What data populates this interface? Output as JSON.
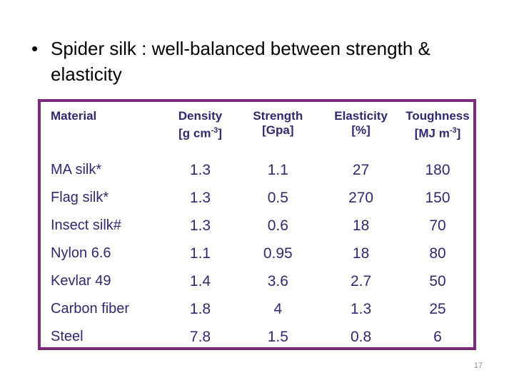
{
  "slide": {
    "bullet_glyph": "•",
    "bullet_text": "Spider silk : well-balanced between strength & elasticity",
    "page_number": "17"
  },
  "table": {
    "headers": [
      {
        "line1": "Material",
        "line2": "",
        "unit": "",
        "line2_suffix": ""
      },
      {
        "line1": "Density",
        "line2": "[g cm",
        "unit": "-3",
        "line2_suffix": "]"
      },
      {
        "line1": "Strength",
        "line2": "[Gpa]",
        "unit": "",
        "line2_suffix": ""
      },
      {
        "line1": "Elasticity",
        "line2": "[%]",
        "unit": "",
        "line2_suffix": ""
      },
      {
        "line1": "Toughness",
        "line2": "[MJ m",
        "unit": "-3",
        "line2_suffix": "]"
      }
    ],
    "rows": [
      {
        "material": "MA silk*",
        "density": "1.3",
        "strength": "1.1",
        "elasticity": "27",
        "toughness": "180"
      },
      {
        "material": "Flag silk*",
        "density": "1.3",
        "strength": "0.5",
        "elasticity": "270",
        "toughness": "150"
      },
      {
        "material": "Insect silk#",
        "density": "1.3",
        "strength": "0.6",
        "elasticity": "18",
        "toughness": "70"
      },
      {
        "material": "Nylon 6.6",
        "density": "1.1",
        "strength": "0.95",
        "elasticity": "18",
        "toughness": "80"
      },
      {
        "material": "Kevlar 49",
        "density": "1.4",
        "strength": "3.6",
        "elasticity": "2.7",
        "toughness": "50"
      },
      {
        "material": "Carbon fiber",
        "density": "1.8",
        "strength": "4",
        "elasticity": "1.3",
        "toughness": "25"
      },
      {
        "material": "Steel",
        "density": "7.8",
        "strength": "1.5",
        "elasticity": "0.8",
        "toughness": "6"
      }
    ],
    "colors": {
      "border": "#7a2a78",
      "text": "#2f2a6e"
    }
  }
}
